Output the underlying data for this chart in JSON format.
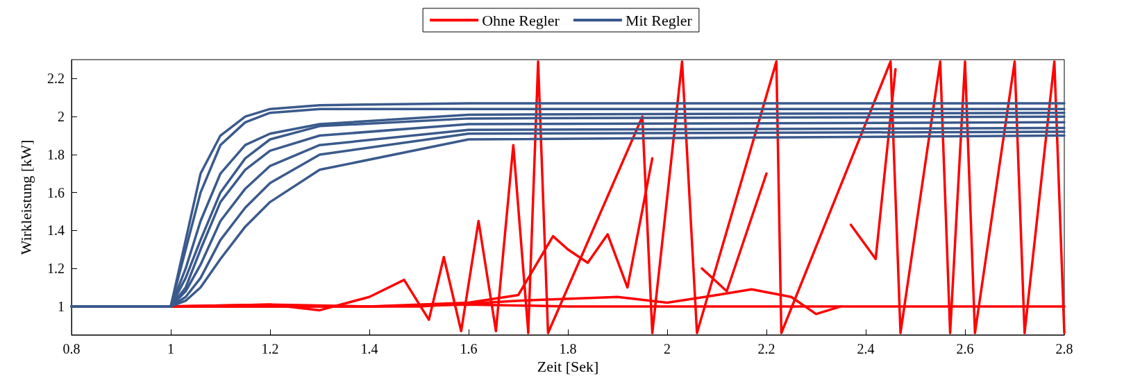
{
  "chart_data": {
    "type": "line",
    "xlabel": "Zeit [Sek]",
    "ylabel": "Wirkleistung [kW]",
    "xlim": [
      0.8,
      2.8
    ],
    "ylim": [
      0.85,
      2.3
    ],
    "xticks": [
      0.8,
      1,
      1.2,
      1.4,
      1.6,
      1.8,
      2,
      2.2,
      2.4,
      2.6,
      2.8
    ],
    "yticks": [
      1,
      1.2,
      1.4,
      1.6,
      1.8,
      2,
      2.2
    ],
    "grid": false,
    "legend": "top",
    "marker": "none",
    "line_style": "solid",
    "series": [
      {
        "name": "Ohne Regler",
        "color": "#ff0000",
        "x": [
          0.8,
          1.0,
          1.2,
          1.4,
          1.6,
          1.8,
          2.0,
          2.2,
          2.4,
          2.6,
          2.8
        ],
        "values": [
          1,
          1,
          1.01,
          1,
          1.01,
          1,
          1,
          1,
          1,
          1,
          1
        ]
      },
      {
        "color": "#ff0000",
        "x": [
          1.0,
          1.2,
          1.3,
          1.4,
          1.47,
          1.52,
          1.55,
          1.585,
          1.62,
          1.655,
          1.69,
          1.72
        ],
        "values": [
          1,
          1.01,
          0.98,
          1.05,
          1.14,
          0.93,
          1.26,
          0.87,
          1.45,
          0.87,
          1.85,
          0.87
        ]
      },
      {
        "color": "#ff0000",
        "x": [
          1.0,
          1.4,
          1.6,
          1.7,
          1.77,
          1.8,
          1.84,
          1.88,
          1.92,
          1.97,
          2.0,
          2.07,
          2.12,
          2.2,
          2.25,
          2.37,
          2.42,
          2.46
        ],
        "values": [
          1,
          1,
          1.02,
          1.06,
          1.37,
          1.3,
          1.23,
          1.38,
          1.1,
          1.78,
          null,
          1.2,
          1.08,
          1.7,
          null,
          1.43,
          1.25,
          2.25
        ]
      },
      {
        "color": "#ff0000",
        "x": [
          1.0,
          1.5,
          1.7,
          1.9,
          2.0,
          2.1,
          2.17,
          2.25,
          2.3,
          2.35
        ],
        "values": [
          1,
          1,
          1.03,
          1.05,
          1.02,
          1.06,
          1.09,
          1.05,
          0.96,
          1
        ]
      },
      {
        "color": "#ff0000",
        "x": [
          1.72,
          1.74,
          1.76,
          1.95,
          1.97,
          2.03,
          2.06,
          2.22,
          2.23,
          2.45,
          2.47,
          2.55,
          2.57,
          2.6,
          2.62,
          2.7,
          2.72,
          2.78,
          2.8
        ],
        "values": [
          0.86,
          2.29,
          0.86,
          2,
          0.86,
          2.29,
          0.86,
          2.29,
          0.86,
          2.29,
          0.86,
          2.29,
          0.86,
          2.29,
          0.86,
          2.29,
          0.86,
          2.29,
          0.86
        ]
      },
      {
        "name": "Mit Regler",
        "color": "#3a5a8c",
        "x": [
          0.8,
          1.0,
          1.03,
          1.06,
          1.1,
          1.15,
          1.2,
          1.3,
          1.6,
          2.8
        ],
        "values": [
          1,
          1,
          1.35,
          1.7,
          1.9,
          2,
          2.04,
          2.06,
          2.07,
          2.07
        ]
      },
      {
        "color": "#3a5a8c",
        "x": [
          0.8,
          1.0,
          1.03,
          1.06,
          1.1,
          1.15,
          1.2,
          1.3,
          1.6,
          2.8
        ],
        "values": [
          1,
          1,
          1.3,
          1.6,
          1.85,
          1.97,
          2.02,
          2.04,
          2.04,
          2.04
        ]
      },
      {
        "color": "#3a5a8c",
        "x": [
          0.8,
          1.0,
          1.03,
          1.06,
          1.1,
          1.15,
          1.2,
          1.3,
          1.6,
          2.8
        ],
        "values": [
          1,
          1,
          1.2,
          1.45,
          1.7,
          1.85,
          1.91,
          1.96,
          2.01,
          2.02
        ]
      },
      {
        "color": "#3a5a8c",
        "x": [
          0.8,
          1.0,
          1.03,
          1.06,
          1.1,
          1.15,
          1.2,
          1.3,
          1.6,
          2.8
        ],
        "values": [
          1,
          1,
          1.15,
          1.35,
          1.6,
          1.78,
          1.88,
          1.95,
          1.99,
          2
        ]
      },
      {
        "color": "#3a5a8c",
        "x": [
          0.8,
          1.0,
          1.03,
          1.06,
          1.1,
          1.15,
          1.2,
          1.3,
          1.6,
          2.8
        ],
        "values": [
          1,
          1,
          1.1,
          1.3,
          1.55,
          1.72,
          1.82,
          1.9,
          1.96,
          1.97
        ]
      },
      {
        "color": "#3a5a8c",
        "x": [
          0.8,
          1.0,
          1.03,
          1.06,
          1.1,
          1.15,
          1.2,
          1.3,
          1.6,
          2.8
        ],
        "values": [
          1,
          1,
          1.08,
          1.22,
          1.45,
          1.62,
          1.74,
          1.85,
          1.93,
          1.94
        ]
      },
      {
        "color": "#3a5a8c",
        "x": [
          0.8,
          1.0,
          1.03,
          1.06,
          1.1,
          1.15,
          1.2,
          1.3,
          1.6,
          2.8
        ],
        "values": [
          1,
          1,
          1.05,
          1.15,
          1.35,
          1.52,
          1.65,
          1.8,
          1.91,
          1.92
        ]
      },
      {
        "color": "#3a5a8c",
        "x": [
          0.8,
          1.0,
          1.03,
          1.06,
          1.1,
          1.15,
          1.2,
          1.3,
          1.6,
          2.8
        ],
        "values": [
          1,
          1,
          1.03,
          1.1,
          1.25,
          1.42,
          1.55,
          1.72,
          1.88,
          1.9
        ]
      }
    ]
  }
}
